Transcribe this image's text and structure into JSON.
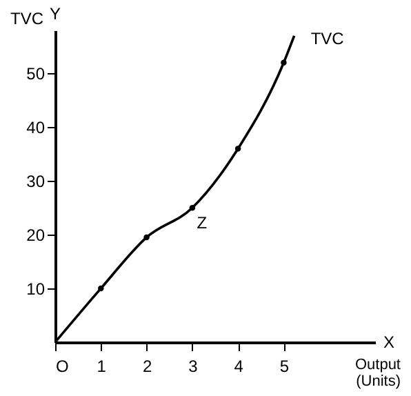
{
  "chart_data": {
    "type": "line",
    "xlabel": "Output (Units)",
    "ylabel": "TVC",
    "xlim": [
      0,
      7
    ],
    "ylim": [
      0,
      58
    ],
    "xticks": [
      {
        "value": 0,
        "label": "O"
      },
      1,
      2,
      3,
      4,
      5
    ],
    "yticks": [
      10,
      20,
      30,
      40,
      50
    ],
    "grid": false,
    "series": [
      {
        "name": "TVC",
        "color": "#000000",
        "marker": "none",
        "x": [
          0,
          1,
          2,
          3,
          4,
          5,
          5.23
        ],
        "values": [
          0,
          10,
          19.5,
          25,
          36,
          52,
          57
        ]
      },
      {
        "type": "scatter",
        "color": "#000000",
        "marker": "circle",
        "x": [
          1,
          2,
          3,
          4,
          5
        ],
        "values": [
          10,
          19.5,
          25,
          36,
          52
        ]
      }
    ],
    "annotations": [
      "Y",
      "X",
      {
        "text": "Z",
        "x": 3,
        "y": 25
      }
    ]
  }
}
